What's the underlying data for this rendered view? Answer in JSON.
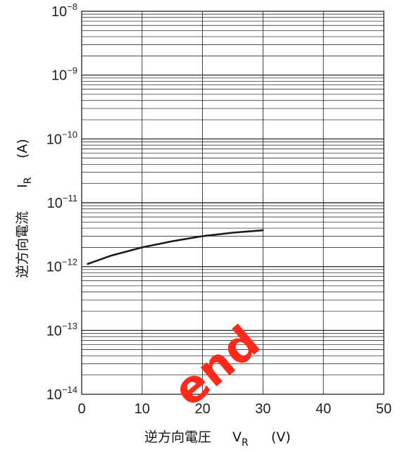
{
  "chart_data": {
    "type": "line",
    "x_scale": "linear",
    "y_scale": "log",
    "xlim": [
      0,
      50
    ],
    "ylim": [
      1e-14,
      1e-08
    ],
    "grid": true,
    "x_ticks": [
      {
        "value": 0,
        "label": "0"
      },
      {
        "value": 10,
        "label": "10"
      },
      {
        "value": 20,
        "label": "20"
      },
      {
        "value": 30,
        "label": "30"
      },
      {
        "value": 40,
        "label": "40"
      },
      {
        "value": 50,
        "label": "50"
      }
    ],
    "y_ticks": [
      {
        "value": 1e-08,
        "base": "10",
        "exp": "−8"
      },
      {
        "value": 1e-09,
        "base": "10",
        "exp": "−9"
      },
      {
        "value": 1e-10,
        "base": "10",
        "exp": "−10"
      },
      {
        "value": 1e-11,
        "base": "10",
        "exp": "−11"
      },
      {
        "value": 1e-12,
        "base": "10",
        "exp": "−12"
      },
      {
        "value": 1e-13,
        "base": "10",
        "exp": "−13"
      },
      {
        "value": 1e-14,
        "base": "10",
        "exp": "−14"
      }
    ],
    "xlabel": {
      "main": "逆方向電圧",
      "var": "V",
      "sub": "R",
      "unit": "(V)"
    },
    "ylabel": {
      "main": "逆方向電流",
      "var": "I",
      "sub": "R",
      "unit": "(A)"
    },
    "series": [
      {
        "color": "#1a1a1a",
        "x": [
          1,
          5,
          10,
          15,
          20,
          25,
          30
        ],
        "y": [
          1.1e-12,
          1.5e-12,
          2e-12,
          2.5e-12,
          3e-12,
          3.4e-12,
          3.7e-12
        ]
      }
    ]
  },
  "watermark": {
    "text": "end",
    "color": "#ff2a1a"
  }
}
